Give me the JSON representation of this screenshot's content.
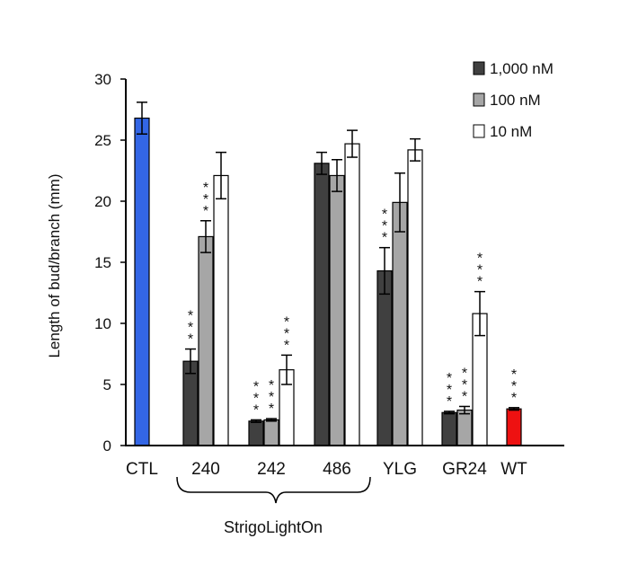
{
  "chart_data": {
    "type": "bar",
    "ylabel": "Length of bud/branch (mm)",
    "ylim": [
      0,
      30
    ],
    "yticks": [
      0,
      5,
      10,
      15,
      20,
      25,
      30
    ],
    "grid": false,
    "legend_position": "top-right",
    "group_bracket_label": "StrigoLightOn",
    "series": [
      {
        "name": "1,000 nM",
        "color": "#404040"
      },
      {
        "name": "100 nM",
        "color": "#a6a6a6"
      },
      {
        "name": "10 nM",
        "color": "#ffffff"
      }
    ],
    "groups": [
      {
        "label": "CTL",
        "bars": [
          {
            "series": null,
            "color": "#3366e6",
            "value": 26.8,
            "error": 1.3,
            "sig": ""
          }
        ]
      },
      {
        "label": "240",
        "bars": [
          {
            "series": 0,
            "value": 6.9,
            "error": 1.0,
            "sig": "***"
          },
          {
            "series": 1,
            "value": 17.1,
            "error": 1.3,
            "sig": "***"
          },
          {
            "series": 2,
            "value": 22.1,
            "error": 1.9,
            "sig": ""
          }
        ]
      },
      {
        "label": "242",
        "bars": [
          {
            "series": 0,
            "value": 2.0,
            "error": 0.1,
            "sig": "***"
          },
          {
            "series": 1,
            "value": 2.1,
            "error": 0.1,
            "sig": "***"
          },
          {
            "series": 2,
            "value": 6.2,
            "error": 1.2,
            "sig": "***"
          }
        ]
      },
      {
        "label": "486",
        "bars": [
          {
            "series": 0,
            "value": 23.1,
            "error": 0.9,
            "sig": ""
          },
          {
            "series": 1,
            "value": 22.1,
            "error": 1.3,
            "sig": ""
          },
          {
            "series": 2,
            "value": 24.7,
            "error": 1.1,
            "sig": ""
          }
        ]
      },
      {
        "label": "YLG",
        "bars": [
          {
            "series": 0,
            "value": 14.3,
            "error": 1.9,
            "sig": "***"
          },
          {
            "series": 1,
            "value": 19.9,
            "error": 2.4,
            "sig": ""
          },
          {
            "series": 2,
            "value": 24.2,
            "error": 0.9,
            "sig": ""
          }
        ]
      },
      {
        "label": "GR24",
        "bars": [
          {
            "series": 0,
            "value": 2.7,
            "error": 0.1,
            "sig": "***"
          },
          {
            "series": 1,
            "value": 2.9,
            "error": 0.3,
            "sig": "***"
          },
          {
            "series": 2,
            "value": 10.8,
            "error": 1.8,
            "sig": "***"
          }
        ]
      },
      {
        "label": "WT",
        "bars": [
          {
            "series": null,
            "color": "#ee1111",
            "value": 3.0,
            "error": 0.1,
            "sig": "***"
          }
        ]
      }
    ]
  }
}
